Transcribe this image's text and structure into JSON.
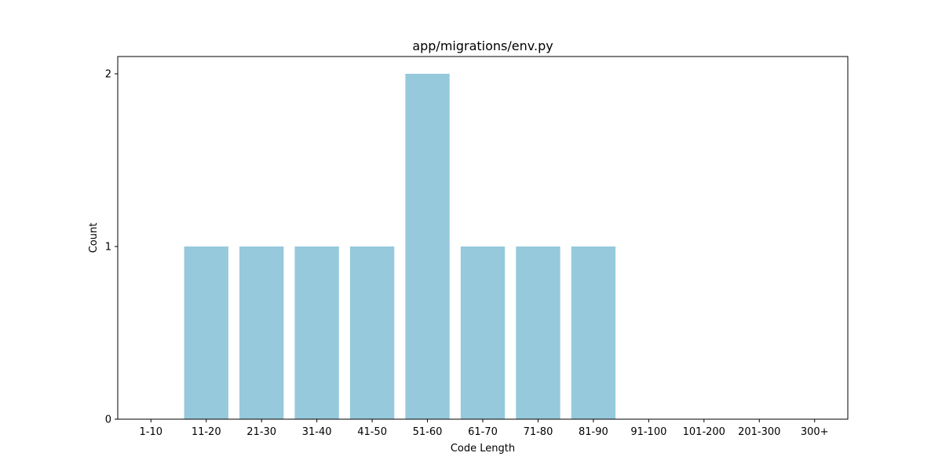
{
  "colors": {
    "bar": "#96c9dc",
    "axis": "#000000",
    "background": "#ffffff"
  },
  "chart_data": {
    "type": "bar",
    "title": "app/migrations/env.py",
    "xlabel": "Code Length",
    "ylabel": "Count",
    "categories": [
      "1-10",
      "11-20",
      "21-30",
      "31-40",
      "41-50",
      "51-60",
      "61-70",
      "71-80",
      "81-90",
      "91-100",
      "101-200",
      "201-300",
      "300+"
    ],
    "values": [
      0,
      1,
      1,
      1,
      1,
      2,
      1,
      1,
      1,
      0,
      0,
      0,
      0
    ],
    "ylim": [
      0,
      2.1
    ],
    "yticks": [
      0,
      1,
      2
    ],
    "grid": false,
    "legend": "none"
  }
}
